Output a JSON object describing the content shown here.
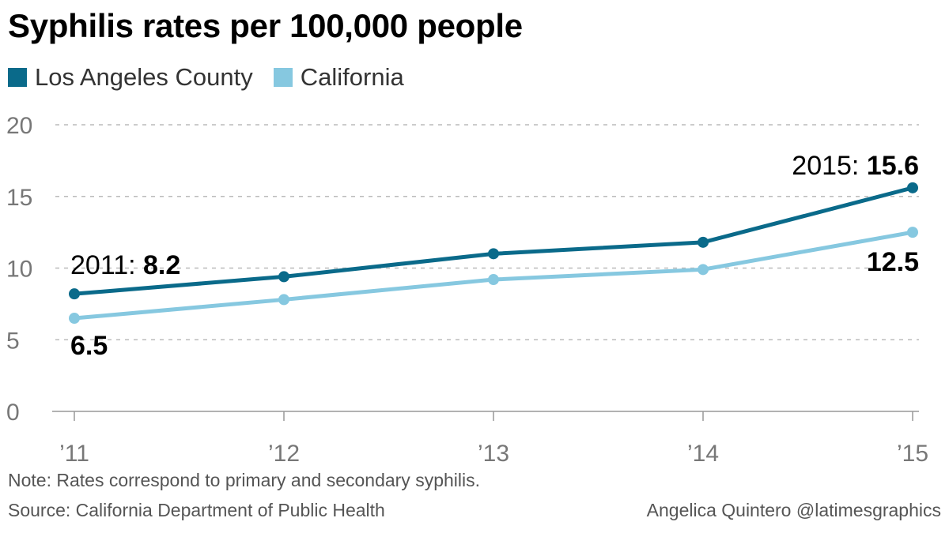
{
  "chart_data": {
    "type": "line",
    "title": "Syphilis rates per 100,000 people",
    "categories": [
      "’11",
      "’12",
      "’13",
      "’14",
      "’15"
    ],
    "series": [
      {
        "name": "Los Angeles County",
        "color": "#0a6a8a",
        "values": [
          8.2,
          9.4,
          11.0,
          11.8,
          15.6
        ]
      },
      {
        "name": "California",
        "color": "#86c8e0",
        "values": [
          6.5,
          7.8,
          9.2,
          9.9,
          12.5
        ]
      }
    ],
    "ylim": [
      0,
      20
    ],
    "yticks": [
      0,
      5,
      10,
      15,
      20
    ],
    "grid": true,
    "annotations": {
      "la_start_year": "2011: ",
      "la_start_value": "8.2",
      "ca_start_value": "6.5",
      "la_end_year": "2015: ",
      "la_end_value": "15.6",
      "ca_end_value": "12.5"
    }
  },
  "footer": {
    "note": "Note: Rates correspond to primary and secondary syphilis.",
    "source": "Source: California Department of Public Health",
    "credit": "Angelica Quintero @latimesgraphics"
  }
}
